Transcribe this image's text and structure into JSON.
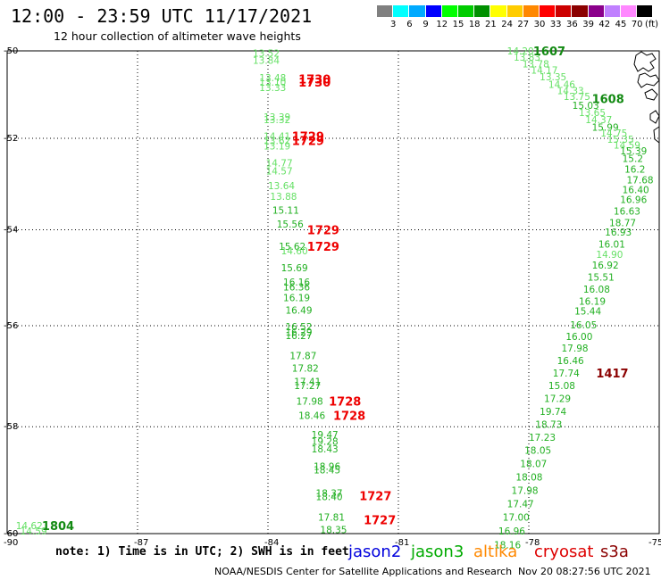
{
  "header": {
    "title": "12:00 - 23:59 UTC 11/17/2021",
    "subtitle": "12 hour collection of altimeter wave heights"
  },
  "colorbar": {
    "unit": "(ft)",
    "colors": [
      "#808080",
      "#00ffff",
      "#00aaff",
      "#0000ff",
      "#00ff00",
      "#00cc00",
      "#009000",
      "#ffff00",
      "#ffcc00",
      "#ff8800",
      "#ff0000",
      "#cc0000",
      "#8b0000",
      "#8b008b",
      "#c080ff",
      "#ff88ff",
      "#000000"
    ],
    "labels": [
      "3",
      "6",
      "9",
      "12",
      "15",
      "18",
      "21",
      "24",
      "27",
      "30",
      "33",
      "36",
      "39",
      "42",
      "45",
      "70"
    ]
  },
  "axes": {
    "x_ticks": [
      "-90",
      "-87",
      "-84",
      "-81",
      "-78",
      "-75"
    ],
    "y_ticks": [
      "-50",
      "-52",
      "-54",
      "-56",
      "-58",
      "-60"
    ],
    "x_range": [
      -90,
      -75
    ],
    "y_range": [
      -60,
      -50
    ]
  },
  "swh_colors": {
    "light_green": "#66e066",
    "green": "#22b022",
    "mid_green": "#138a13",
    "dark_red": "#8b0000",
    "red": "#ee0000"
  },
  "observations": [
    {
      "lon": -84.35,
      "lat": -50.05,
      "text": "13.52",
      "color": "light_green"
    },
    {
      "lon": -84.35,
      "lat": -50.22,
      "text": "13.84",
      "color": "light_green"
    },
    {
      "lon": -84.2,
      "lat": -50.62,
      "text": "13.48",
      "color": "light_green"
    },
    {
      "lon": -84.2,
      "lat": -50.72,
      "text": "13.10",
      "color": "light_green"
    },
    {
      "lon": -84.2,
      "lat": -50.85,
      "text": "13.33",
      "color": "light_green"
    },
    {
      "lon": -84.1,
      "lat": -51.52,
      "text": "13.39",
      "color": "light_green"
    },
    {
      "lon": -84.1,
      "lat": -51.58,
      "text": "13.32",
      "color": "light_green"
    },
    {
      "lon": -84.1,
      "lat": -51.95,
      "text": "14.41",
      "color": "light_green"
    },
    {
      "lon": -84.1,
      "lat": -52.05,
      "text": "13.62",
      "color": "light_green"
    },
    {
      "lon": -84.1,
      "lat": -52.17,
      "text": "13.19",
      "color": "light_green"
    },
    {
      "lon": -84.05,
      "lat": -52.55,
      "text": "14.77",
      "color": "light_green"
    },
    {
      "lon": -84.05,
      "lat": -52.72,
      "text": "14.57",
      "color": "light_green"
    },
    {
      "lon": -84.0,
      "lat": -53.05,
      "text": "13.64",
      "color": "light_green"
    },
    {
      "lon": -83.95,
      "lat": -53.28,
      "text": "13.88",
      "color": "light_green"
    },
    {
      "lon": -83.9,
      "lat": -53.58,
      "text": "15.11",
      "color": "green"
    },
    {
      "lon": -83.8,
      "lat": -53.88,
      "text": "15.56",
      "color": "green"
    },
    {
      "lon": -83.75,
      "lat": -54.35,
      "text": "15.62",
      "color": "green"
    },
    {
      "lon": -83.7,
      "lat": -54.45,
      "text": "14.60",
      "color": "light_green"
    },
    {
      "lon": -83.7,
      "lat": -54.8,
      "text": "15.69",
      "color": "green"
    },
    {
      "lon": -83.65,
      "lat": -55.1,
      "text": "16.16",
      "color": "green"
    },
    {
      "lon": -83.65,
      "lat": -55.2,
      "text": "16.36",
      "color": "green"
    },
    {
      "lon": -83.65,
      "lat": -55.42,
      "text": "16.19",
      "color": "green"
    },
    {
      "lon": -83.6,
      "lat": -55.68,
      "text": "16.49",
      "color": "green"
    },
    {
      "lon": -83.6,
      "lat": -56.02,
      "text": "16.52",
      "color": "green"
    },
    {
      "lon": -83.6,
      "lat": -56.13,
      "text": "16.29",
      "color": "green"
    },
    {
      "lon": -83.6,
      "lat": -56.2,
      "text": "16.27",
      "color": "green"
    },
    {
      "lon": -83.5,
      "lat": -56.6,
      "text": "17.87",
      "color": "green"
    },
    {
      "lon": -83.45,
      "lat": -56.85,
      "text": "17.82",
      "color": "green"
    },
    {
      "lon": -83.4,
      "lat": -57.12,
      "text": "17.41",
      "color": "green"
    },
    {
      "lon": -83.4,
      "lat": -57.2,
      "text": "17.27",
      "color": "green"
    },
    {
      "lon": -83.35,
      "lat": -57.5,
      "text": "17.98",
      "color": "green"
    },
    {
      "lon": -83.3,
      "lat": -57.78,
      "text": "18.46",
      "color": "green"
    },
    {
      "lon": -83.0,
      "lat": -58.15,
      "text": "19.47",
      "color": "green"
    },
    {
      "lon": -83.0,
      "lat": -58.28,
      "text": "19.28",
      "color": "green"
    },
    {
      "lon": -83.0,
      "lat": -58.42,
      "text": "18.43",
      "color": "green"
    },
    {
      "lon": -82.95,
      "lat": -58.75,
      "text": "18.96",
      "color": "green"
    },
    {
      "lon": -82.95,
      "lat": -58.82,
      "text": "18.45",
      "color": "green"
    },
    {
      "lon": -82.9,
      "lat": -59.25,
      "text": "18.37",
      "color": "green"
    },
    {
      "lon": -82.9,
      "lat": -59.32,
      "text": "18.40",
      "color": "green"
    },
    {
      "lon": -82.85,
      "lat": -59.7,
      "text": "17.81",
      "color": "green"
    },
    {
      "lon": -82.8,
      "lat": -59.93,
      "text": "18.35",
      "color": "green"
    },
    {
      "lon": -89.8,
      "lat": -59.85,
      "text": "14.62",
      "color": "light_green"
    },
    {
      "lon": -89.7,
      "lat": -59.95,
      "text": "14.59",
      "color": "light_green"
    },
    {
      "lon": -78.5,
      "lat": -50.0,
      "text": "14.20",
      "color": "light_green"
    },
    {
      "lon": -78.35,
      "lat": -50.15,
      "text": "13.83",
      "color": "light_green"
    },
    {
      "lon": -78.15,
      "lat": -50.3,
      "text": "13.78",
      "color": "light_green"
    },
    {
      "lon": -77.95,
      "lat": -50.45,
      "text": "14.17",
      "color": "light_green"
    },
    {
      "lon": -77.75,
      "lat": -50.6,
      "text": "13.35",
      "color": "light_green"
    },
    {
      "lon": -77.55,
      "lat": -50.78,
      "text": "14.46",
      "color": "light_green"
    },
    {
      "lon": -77.35,
      "lat": -50.92,
      "text": "14.33",
      "color": "light_green"
    },
    {
      "lon": -77.2,
      "lat": -51.05,
      "text": "13.75",
      "color": "light_green"
    },
    {
      "lon": -77.0,
      "lat": -51.25,
      "text": "15.03",
      "color": "green"
    },
    {
      "lon": -76.85,
      "lat": -51.42,
      "text": "13.65",
      "color": "light_green"
    },
    {
      "lon": -76.7,
      "lat": -51.58,
      "text": "14.37",
      "color": "light_green"
    },
    {
      "lon": -76.55,
      "lat": -51.75,
      "text": "15.99",
      "color": "green"
    },
    {
      "lon": -76.35,
      "lat": -51.88,
      "text": "14.75",
      "color": "light_green"
    },
    {
      "lon": -76.2,
      "lat": -52.02,
      "text": "15.35",
      "color": "light_green"
    },
    {
      "lon": -76.05,
      "lat": -52.15,
      "text": "14.59",
      "color": "light_green"
    },
    {
      "lon": -75.9,
      "lat": -52.28,
      "text": "15.39",
      "color": "green"
    },
    {
      "lon": -75.85,
      "lat": -52.45,
      "text": "15.2",
      "color": "green"
    },
    {
      "lon": -75.8,
      "lat": -52.68,
      "text": "16.2",
      "color": "green"
    },
    {
      "lon": -75.75,
      "lat": -52.92,
      "text": "17.68",
      "color": "green"
    },
    {
      "lon": -75.85,
      "lat": -53.13,
      "text": "16.40",
      "color": "green"
    },
    {
      "lon": -75.9,
      "lat": -53.35,
      "text": "16.96",
      "color": "green"
    },
    {
      "lon": -76.05,
      "lat": -53.6,
      "text": "16.63",
      "color": "green"
    },
    {
      "lon": -76.15,
      "lat": -53.85,
      "text": "18.77",
      "color": "green"
    },
    {
      "lon": -76.25,
      "lat": -54.05,
      "text": "16.93",
      "color": "green"
    },
    {
      "lon": -76.4,
      "lat": -54.3,
      "text": "16.01",
      "color": "green"
    },
    {
      "lon": -76.45,
      "lat": -54.52,
      "text": "14.90",
      "color": "light_green"
    },
    {
      "lon": -76.55,
      "lat": -54.75,
      "text": "16.92",
      "color": "green"
    },
    {
      "lon": -76.65,
      "lat": -55.0,
      "text": "15.51",
      "color": "green"
    },
    {
      "lon": -76.75,
      "lat": -55.25,
      "text": "16.08",
      "color": "green"
    },
    {
      "lon": -76.85,
      "lat": -55.5,
      "text": "16.19",
      "color": "green"
    },
    {
      "lon": -76.95,
      "lat": -55.7,
      "text": "15.44",
      "color": "green"
    },
    {
      "lon": -77.05,
      "lat": -55.98,
      "text": "16.05",
      "color": "green"
    },
    {
      "lon": -77.15,
      "lat": -56.22,
      "text": "16.00",
      "color": "green"
    },
    {
      "lon": -77.25,
      "lat": -56.45,
      "text": "17.98",
      "color": "green"
    },
    {
      "lon": -77.35,
      "lat": -56.7,
      "text": "16.46",
      "color": "green"
    },
    {
      "lon": -77.45,
      "lat": -56.95,
      "text": "17.74",
      "color": "green"
    },
    {
      "lon": -77.55,
      "lat": -57.2,
      "text": "15.08",
      "color": "green"
    },
    {
      "lon": -77.65,
      "lat": -57.45,
      "text": "17.29",
      "color": "green"
    },
    {
      "lon": -77.75,
      "lat": -57.7,
      "text": "19.74",
      "color": "green"
    },
    {
      "lon": -77.85,
      "lat": -57.95,
      "text": "18.73",
      "color": "green"
    },
    {
      "lon": -78.0,
      "lat": -58.2,
      "text": "17.23",
      "color": "green"
    },
    {
      "lon": -78.1,
      "lat": -58.45,
      "text": "18.05",
      "color": "green"
    },
    {
      "lon": -78.2,
      "lat": -58.7,
      "text": "18.07",
      "color": "green"
    },
    {
      "lon": -78.3,
      "lat": -58.95,
      "text": "18.08",
      "color": "green"
    },
    {
      "lon": -78.4,
      "lat": -59.2,
      "text": "17.98",
      "color": "green"
    },
    {
      "lon": -78.5,
      "lat": -59.45,
      "text": "17.47",
      "color": "green"
    },
    {
      "lon": -78.6,
      "lat": -59.7,
      "text": "17.00",
      "color": "green"
    },
    {
      "lon": -78.7,
      "lat": -59.95,
      "text": "16.96",
      "color": "green"
    },
    {
      "lon": -78.8,
      "lat": -60.2,
      "text": "18.16",
      "color": "green"
    }
  ],
  "pass_times": [
    {
      "lon": -83.3,
      "lat": -50.65,
      "text": "1730",
      "color": "red"
    },
    {
      "lon": -83.3,
      "lat": -50.72,
      "text": "1730",
      "color": "red"
    },
    {
      "lon": -83.45,
      "lat": -51.95,
      "text": "1729",
      "color": "red"
    },
    {
      "lon": -83.45,
      "lat": -52.05,
      "text": "1729",
      "color": "red"
    },
    {
      "lon": -83.1,
      "lat": -54.0,
      "text": "1729",
      "color": "red"
    },
    {
      "lon": -83.1,
      "lat": -54.35,
      "text": "1729",
      "color": "red"
    },
    {
      "lon": -82.6,
      "lat": -57.5,
      "text": "1728",
      "color": "red"
    },
    {
      "lon": -82.5,
      "lat": -57.78,
      "text": "1728",
      "color": "red"
    },
    {
      "lon": -81.9,
      "lat": -59.3,
      "text": "1727",
      "color": "red"
    },
    {
      "lon": -81.8,
      "lat": -59.75,
      "text": "1727",
      "color": "red"
    },
    {
      "lon": -89.2,
      "lat": -59.85,
      "text": "1804",
      "color": "mid_green"
    },
    {
      "lon": -77.9,
      "lat": -50.0,
      "text": "1607",
      "color": "mid_green"
    },
    {
      "lon": -76.55,
      "lat": -51.1,
      "text": "1608",
      "color": "mid_green"
    },
    {
      "lon": -76.45,
      "lat": -56.95,
      "text": "1417",
      "color": "dark_red"
    }
  ],
  "footer": {
    "note": "note: 1) Time is in UTC; 2) SWH is in feet",
    "satellites": [
      {
        "name": "jason2",
        "color": "#0000dd"
      },
      {
        "name": "jason3",
        "color": "#00aa00"
      },
      {
        "name": "altika",
        "color": "#ff8800"
      },
      {
        "name": "cryosat",
        "color": "#dd0000"
      },
      {
        "name": "s3a",
        "color": "#8b0000"
      }
    ],
    "credit": "NOAA/NESDIS Center for Satellite Applications and Research",
    "timestamp": "Nov 20 08:27:56 UTC 2021"
  }
}
